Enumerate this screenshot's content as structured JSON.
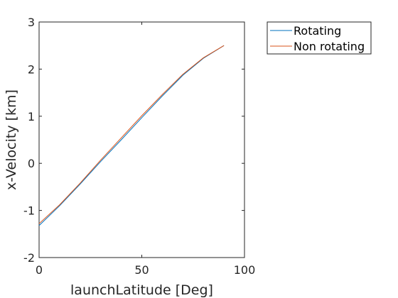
{
  "chart_data": {
    "type": "line",
    "title": "",
    "xlabel": "launchLatitude [Deg]",
    "ylabel": "x-Velocity [km]",
    "xlim": [
      0,
      100
    ],
    "ylim": [
      -2,
      3
    ],
    "xticks": [
      0,
      50,
      100
    ],
    "yticks": [
      -2,
      -1,
      0,
      1,
      2,
      3
    ],
    "xtick_labels": [
      "0",
      "50",
      "100"
    ],
    "ytick_labels": [
      "-2",
      "-1",
      "0",
      "1",
      "2",
      "3"
    ],
    "grid": false,
    "legend_position": "outside-top-right",
    "series": [
      {
        "name": "Rotating",
        "color": "#0072BD",
        "x": [
          0,
          10,
          20,
          30,
          40,
          50,
          60,
          70,
          80,
          90
        ],
        "y": [
          -1.32,
          -0.9,
          -0.44,
          0.04,
          0.5,
          0.97,
          1.43,
          1.87,
          2.23,
          2.5
        ]
      },
      {
        "name": "Non rotating",
        "color": "#D95319",
        "x": [
          0,
          10,
          20,
          30,
          40,
          50,
          60,
          70,
          80,
          90
        ],
        "y": [
          -1.28,
          -0.88,
          -0.42,
          0.07,
          0.54,
          1.01,
          1.46,
          1.89,
          2.24,
          2.5
        ]
      }
    ]
  }
}
